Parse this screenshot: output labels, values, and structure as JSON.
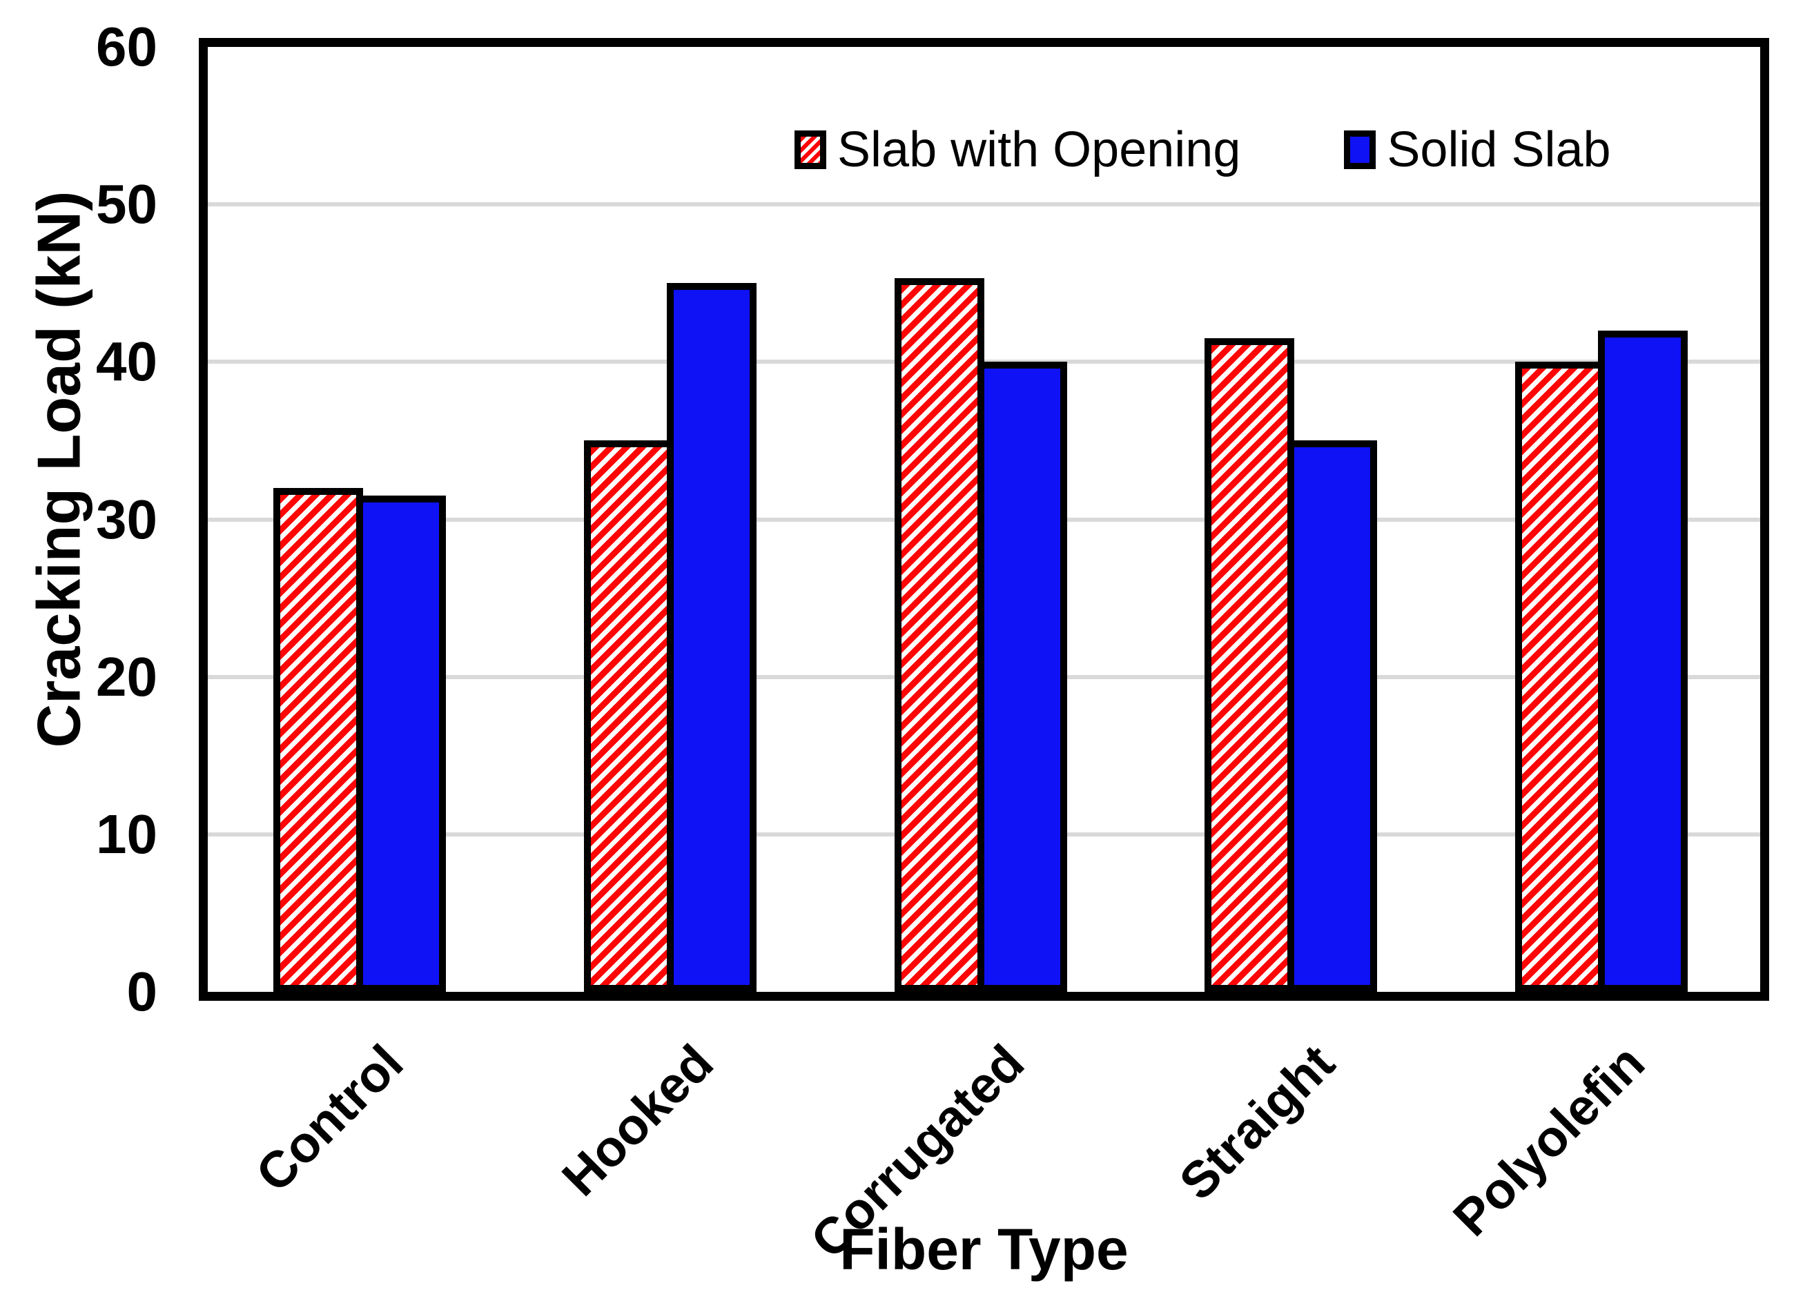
{
  "chart_data": {
    "type": "bar",
    "title": "",
    "xlabel": "Fiber Type",
    "ylabel": "Cracking Load (kN)",
    "categories": [
      "Control",
      "Hooked",
      "Corrugated",
      "Straight",
      "Polyolefin"
    ],
    "series": [
      {
        "name": "Slab with Opening",
        "style": "hatched",
        "values": [
          32,
          35,
          45.3,
          41.5,
          40
        ]
      },
      {
        "name": "Solid Slab",
        "style": "solid",
        "values": [
          31.5,
          45,
          40,
          35,
          42
        ]
      }
    ],
    "ylim": [
      0,
      60
    ],
    "yticks": [
      0,
      10,
      20,
      30,
      40,
      50,
      60
    ],
    "grid": "horizontal-light-gray",
    "legend_position": "top-inside",
    "colors": {
      "hatch_red": "#FE0404",
      "solid_blue": "#0E12F5",
      "bar_border": "#000000",
      "gridline": "#D9D9D9",
      "frame": "#000000",
      "background": "#FFFFFF"
    }
  }
}
